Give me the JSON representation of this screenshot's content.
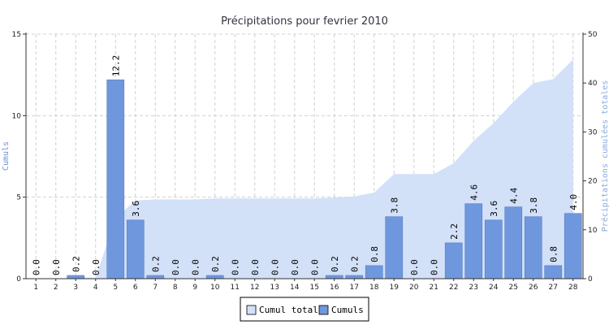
{
  "chart_data": {
    "type": "bar",
    "title": "Précipitations pour fevrier 2010",
    "ylabel_left": "Cumuls",
    "ylabel_right": "Précipitations cumulées totales",
    "ylim_left": [
      0,
      15
    ],
    "yticks_left": [
      0,
      5,
      10,
      15
    ],
    "ylim_right": [
      0,
      50
    ],
    "yticks_right": [
      0,
      10,
      20,
      30,
      40,
      50
    ],
    "grid": true,
    "legend_position": "bottom-center",
    "categories": [
      "1",
      "2",
      "3",
      "4",
      "5",
      "6",
      "7",
      "8",
      "9",
      "10",
      "11",
      "12",
      "13",
      "14",
      "15",
      "16",
      "17",
      "18",
      "19",
      "20",
      "21",
      "22",
      "23",
      "24",
      "25",
      "26",
      "27",
      "28"
    ],
    "series": [
      {
        "name": "Cumuls",
        "kind": "bar",
        "axis": "left",
        "color": "#6f97dd",
        "values": [
          0.0,
          0.0,
          0.2,
          0.0,
          12.2,
          3.6,
          0.2,
          0.0,
          0.0,
          0.2,
          0.0,
          0.0,
          0.0,
          0.0,
          0.0,
          0.2,
          0.2,
          0.8,
          3.8,
          0.0,
          0.0,
          2.2,
          4.6,
          3.6,
          4.4,
          3.8,
          0.8,
          4.0
        ],
        "labels": [
          "0.0",
          "0.0",
          "0.2",
          "0.0",
          "12.2",
          "3.6",
          "0.2",
          "0.0",
          "0.0",
          "0.2",
          "0.0",
          "0.0",
          "0.0",
          "0.0",
          "0.0",
          "0.2",
          "0.2",
          "0.8",
          "3.8",
          "0.0",
          "0.0",
          "2.2",
          "4.6",
          "3.6",
          "4.4",
          "3.8",
          "0.8",
          "4.0"
        ]
      },
      {
        "name": "Cumul total",
        "kind": "area",
        "axis": "right",
        "color": "#d2e0f8",
        "values": [
          0.0,
          0.0,
          0.2,
          0.2,
          12.4,
          16.0,
          16.2,
          16.2,
          16.2,
          16.4,
          16.4,
          16.4,
          16.4,
          16.4,
          16.4,
          16.6,
          16.8,
          17.6,
          21.4,
          21.4,
          21.4,
          23.6,
          28.2,
          31.8,
          36.2,
          40.0,
          40.8,
          44.8
        ]
      }
    ]
  }
}
